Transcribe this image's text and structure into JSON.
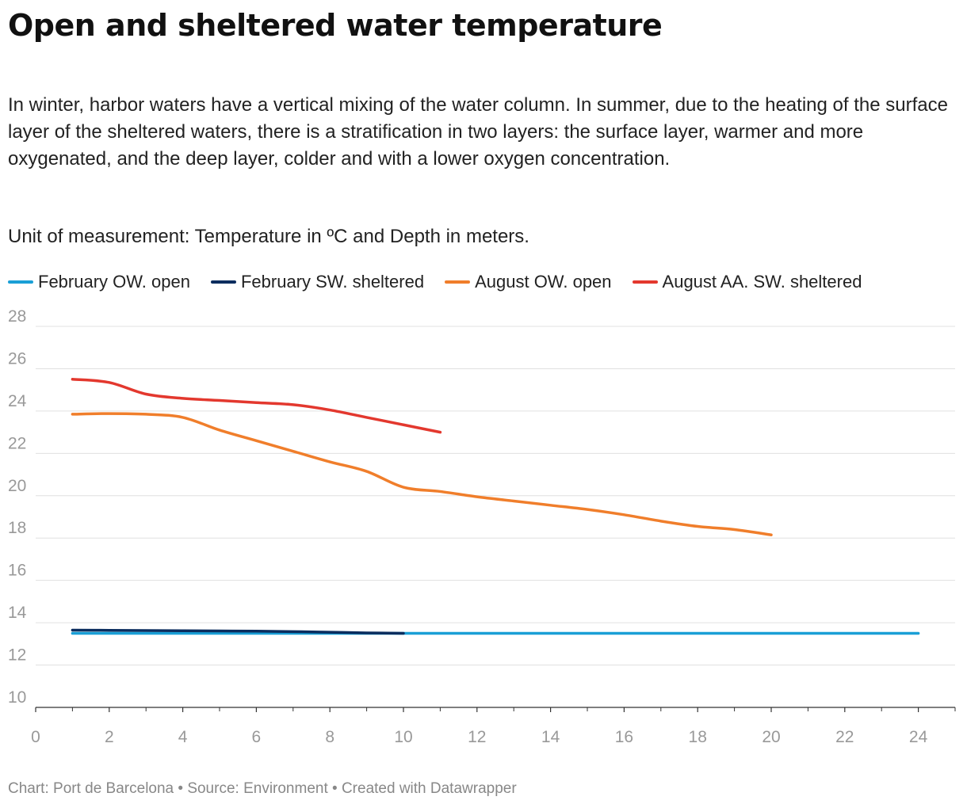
{
  "title": "Open and sheltered water temperature",
  "description": "In winter, harbor waters have a vertical mixing of the water column. In summer, due to the heating of the surface layer of the sheltered waters, there is a stratification in two layers: the surface layer, warmer and more oxygenated, and the deep layer, colder and with a lower oxygen concentration.",
  "unit_note": "Unit of measurement: Temperature in ºC and Depth in meters.",
  "footer": "Chart: Port de Barcelona • Source: Environment • Created with Datawrapper",
  "chart_data": {
    "type": "line",
    "xlabel": "",
    "ylabel": "",
    "xlim": [
      0,
      25
    ],
    "ylim": [
      10,
      28
    ],
    "x_ticks": [
      0,
      2,
      4,
      6,
      8,
      10,
      12,
      14,
      16,
      18,
      20,
      22,
      24
    ],
    "y_ticks": [
      10,
      12,
      14,
      16,
      18,
      20,
      22,
      24,
      26,
      28
    ],
    "grid": true,
    "legend_position": "top",
    "series": [
      {
        "name": "February OW. open",
        "color": "#1a9fd6",
        "x": [
          1,
          2,
          4,
          6,
          8,
          10,
          12,
          14,
          16,
          18,
          20,
          22,
          24
        ],
        "y": [
          13.5,
          13.5,
          13.5,
          13.5,
          13.5,
          13.5,
          13.5,
          13.5,
          13.5,
          13.5,
          13.5,
          13.5,
          13.5
        ]
      },
      {
        "name": "February SW. sheltered",
        "color": "#0b2d5e",
        "x": [
          1,
          2,
          3,
          4,
          5,
          6,
          7,
          8,
          9,
          10
        ],
        "y": [
          13.65,
          13.64,
          13.63,
          13.62,
          13.61,
          13.6,
          13.58,
          13.55,
          13.52,
          13.5
        ]
      },
      {
        "name": "August OW. open",
        "color": "#f07e2b",
        "x": [
          1,
          2,
          3,
          4,
          5,
          6,
          7,
          8,
          9,
          10,
          11,
          12,
          13,
          14,
          15,
          16,
          17,
          18,
          19,
          20
        ],
        "y": [
          23.85,
          23.88,
          23.85,
          23.7,
          23.1,
          22.6,
          22.1,
          21.6,
          21.15,
          20.4,
          20.2,
          19.95,
          19.75,
          19.55,
          19.35,
          19.1,
          18.8,
          18.55,
          18.4,
          18.15
        ]
      },
      {
        "name": "August AA. SW. sheltered",
        "color": "#e3382e",
        "x": [
          1,
          2,
          3,
          4,
          5,
          6,
          7,
          8,
          9,
          10,
          11
        ],
        "y": [
          25.5,
          25.35,
          24.8,
          24.6,
          24.5,
          24.4,
          24.3,
          24.05,
          23.7,
          23.35,
          23.0
        ]
      }
    ]
  }
}
